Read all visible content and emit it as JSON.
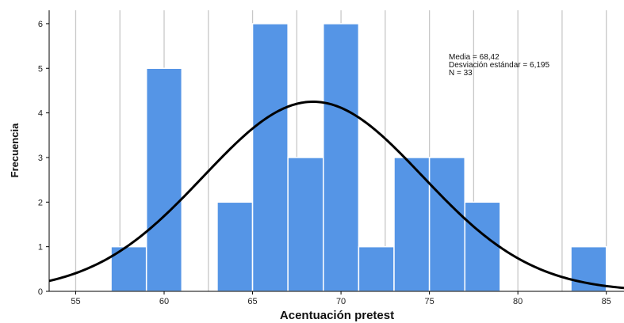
{
  "chart_data": {
    "type": "bar",
    "subtype": "histogram",
    "xlabel": "Acentuación pretest",
    "ylabel": "Frecuencia",
    "xlim": [
      53.5,
      86.0
    ],
    "ylim": [
      0,
      6.3
    ],
    "x_ticks": [
      55,
      60,
      65,
      70,
      75,
      80,
      85
    ],
    "y_ticks": [
      0,
      1,
      2,
      3,
      4,
      5,
      6
    ],
    "grid": "vertical",
    "bin_width": 2,
    "bins": [
      {
        "x0": 57,
        "x1": 59,
        "value": 1
      },
      {
        "x0": 59,
        "x1": 61,
        "value": 5
      },
      {
        "x0": 63,
        "x1": 65,
        "value": 2
      },
      {
        "x0": 65,
        "x1": 67,
        "value": 6
      },
      {
        "x0": 67,
        "x1": 69,
        "value": 3
      },
      {
        "x0": 69,
        "x1": 71,
        "value": 6
      },
      {
        "x0": 71,
        "x1": 73,
        "value": 1
      },
      {
        "x0": 73,
        "x1": 75,
        "value": 3
      },
      {
        "x0": 75,
        "x1": 77,
        "value": 3
      },
      {
        "x0": 77,
        "x1": 79,
        "value": 2
      },
      {
        "x0": 83,
        "x1": 85,
        "value": 1
      }
    ],
    "normal_curve": {
      "mean": 68.42,
      "sd": 6.195,
      "n": 33
    },
    "stats_lines": [
      "Media = 68,42",
      "Desviación estándar = 6,195",
      "N = 33"
    ],
    "colors": {
      "bar": "#5595e6",
      "bar_edge": "#ffffff",
      "curve": "#000000",
      "grid": "#c8c8c8",
      "axis": "#000000"
    }
  }
}
